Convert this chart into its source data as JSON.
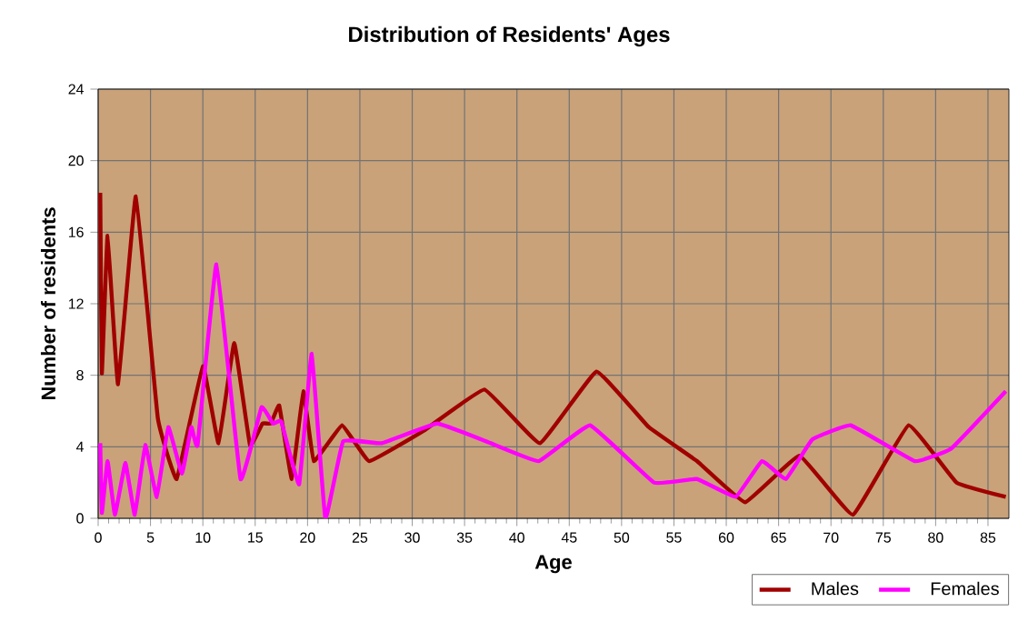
{
  "chart_data": {
    "type": "line",
    "title": "Distribution of Residents' Ages",
    "xlabel": "Age",
    "ylabel": "Number of residents",
    "xlim": [
      0,
      87
    ],
    "xticks": [
      0,
      5,
      10,
      15,
      20,
      25,
      30,
      35,
      40,
      45,
      50,
      55,
      60,
      65,
      70,
      75,
      80,
      85
    ],
    "ylim": [
      0,
      24
    ],
    "yticks": [
      0,
      4,
      8,
      12,
      16,
      20,
      24
    ],
    "grid": true,
    "legend": "bottom right",
    "marker": "none",
    "line_style": "solid",
    "series": [
      {
        "name": "Males",
        "color": "#a00000",
        "x": [
          0.2,
          0.35,
          0.9,
          1.9,
          3.6,
          5.7,
          7.5,
          10.0,
          11.5,
          13.0,
          14.5,
          15.7,
          16.5,
          17.3,
          18.5,
          19.6,
          20.6,
          23.3,
          25.9,
          31.1,
          36.9,
          42.2,
          47.6,
          52.6,
          57.2,
          61.8,
          67.0,
          72.1,
          77.4,
          82.0,
          86.7
        ],
        "values": [
          18.2,
          8.1,
          15.8,
          7.5,
          18.0,
          5.6,
          2.2,
          8.5,
          4.2,
          9.8,
          4.1,
          5.3,
          5.3,
          6.3,
          2.2,
          7.1,
          3.2,
          5.2,
          3.2,
          4.9,
          7.2,
          4.2,
          8.2,
          5.1,
          3.2,
          0.9,
          3.5,
          0.2,
          5.2,
          2.0,
          1.2
        ]
      },
      {
        "name": "Females",
        "color": "#ff00ff",
        "x": [
          0.2,
          0.35,
          0.9,
          1.6,
          2.6,
          3.5,
          4.5,
          5.6,
          6.7,
          8.0,
          8.9,
          9.5,
          11.3,
          13.6,
          15.6,
          16.7,
          17.5,
          19.2,
          20.4,
          21.7,
          23.4,
          27.1,
          32.4,
          37.5,
          42.1,
          47.0,
          53.1,
          57.2,
          60.9,
          63.4,
          65.7,
          68.2,
          71.9,
          78.0,
          81.5,
          86.7
        ],
        "values": [
          4.2,
          0.3,
          3.2,
          0.2,
          3.1,
          0.2,
          4.1,
          1.2,
          5.1,
          2.5,
          5.1,
          4.1,
          14.2,
          2.2,
          6.2,
          5.3,
          5.4,
          1.9,
          9.2,
          0.0,
          4.3,
          4.2,
          5.3,
          4.2,
          3.2,
          5.2,
          2.0,
          2.2,
          1.2,
          3.2,
          2.2,
          4.4,
          5.2,
          3.2,
          3.9,
          7.1
        ]
      }
    ]
  }
}
